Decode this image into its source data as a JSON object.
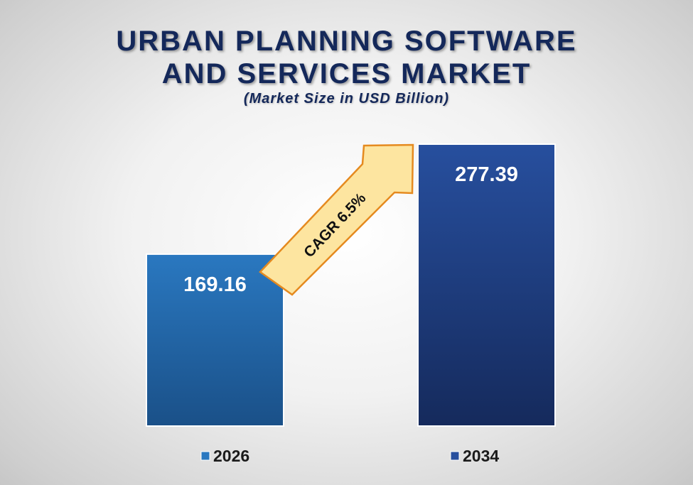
{
  "title_line1": "URBAN PLANNING SOFTWARE",
  "title_line2": "AND SERVICES MARKET",
  "subtitle": "(Market Size in USD Billion)",
  "cagr_label": "CAGR  6.5%",
  "colors": {
    "title": "#14285a",
    "bar_2026_top": "#2a78c0",
    "bar_2026_bottom": "#1a5088",
    "bar_2034_top": "#274f9e",
    "bar_2034_bottom": "#152a5c",
    "arrow_fill": "#fde5a0",
    "arrow_stroke": "#e58a1f"
  },
  "chart_data": {
    "type": "bar",
    "title": "URBAN PLANNING SOFTWARE AND SERVICES MARKET",
    "subtitle": "(Market Size in USD Billion)",
    "categories": [
      "2026",
      "2034"
    ],
    "values": [
      169.16,
      277.39
    ],
    "value_labels": [
      "169.16",
      "277.39"
    ],
    "legend": [
      "2026",
      "2034"
    ],
    "legend_placement": "bottom",
    "grid": false,
    "annotation": "CAGR  6.5%"
  }
}
